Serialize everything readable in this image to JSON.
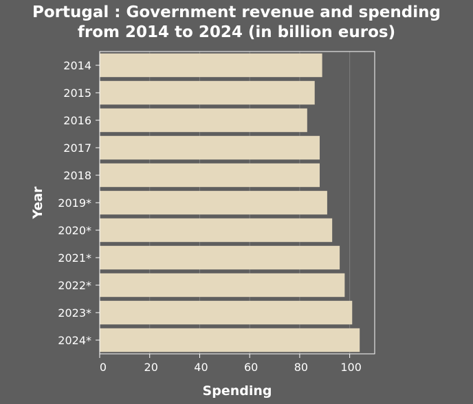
{
  "chart_data": {
    "type": "bar",
    "orientation": "horizontal",
    "title_line1": "Portugal : Government revenue and spending",
    "title_line2": "from 2014 to 2024 (in billion euros)",
    "xlabel": "Spending",
    "ylabel": "Year",
    "xlim": [
      0,
      110
    ],
    "xticks": [
      0,
      20,
      40,
      60,
      80,
      100
    ],
    "categories": [
      "2014",
      "2015",
      "2016",
      "2017",
      "2018",
      "2019*",
      "2020*",
      "2021*",
      "2022*",
      "2023*",
      "2024*"
    ],
    "values": [
      89,
      86,
      83,
      88,
      88,
      91,
      93,
      96,
      98,
      101,
      104
    ],
    "bar_color": "#e5d9bd",
    "background_color": "#5e5e5e",
    "grid": "vertical",
    "legend": "none"
  }
}
